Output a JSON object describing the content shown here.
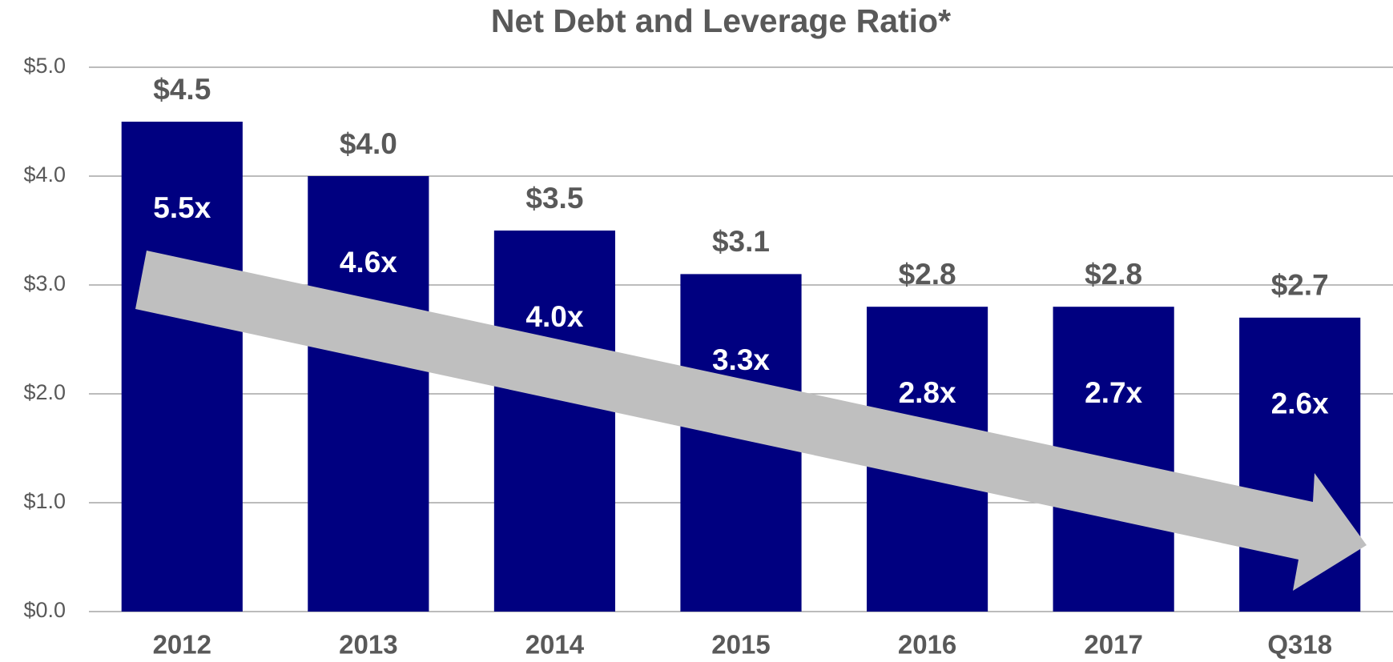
{
  "chart_data": {
    "type": "bar",
    "title": "Net Debt and Leverage Ratio*",
    "categories": [
      "2012",
      "2013",
      "2014",
      "2015",
      "2016",
      "2017",
      "Q318"
    ],
    "values": [
      4.5,
      4.0,
      3.5,
      3.1,
      2.8,
      2.8,
      2.7
    ],
    "value_labels": [
      "$4.5",
      "$4.0",
      "$3.5",
      "$3.1",
      "$2.8",
      "$2.8",
      "$2.7"
    ],
    "annotations": [
      "5.5x",
      "4.6x",
      "4.0x",
      "3.3x",
      "2.8x",
      "2.7x",
      "2.6x"
    ],
    "color": "#000080",
    "ylim": [
      0,
      5
    ],
    "yticks": [
      {
        "value": 0,
        "label": "$0.0"
      },
      {
        "value": 1,
        "label": "$1.0"
      },
      {
        "value": 2,
        "label": "$2.0"
      },
      {
        "value": 3,
        "label": "$3.0"
      },
      {
        "value": 4,
        "label": "$4.0"
      },
      {
        "value": 5,
        "label": "$5.0"
      }
    ],
    "grid": true
  }
}
